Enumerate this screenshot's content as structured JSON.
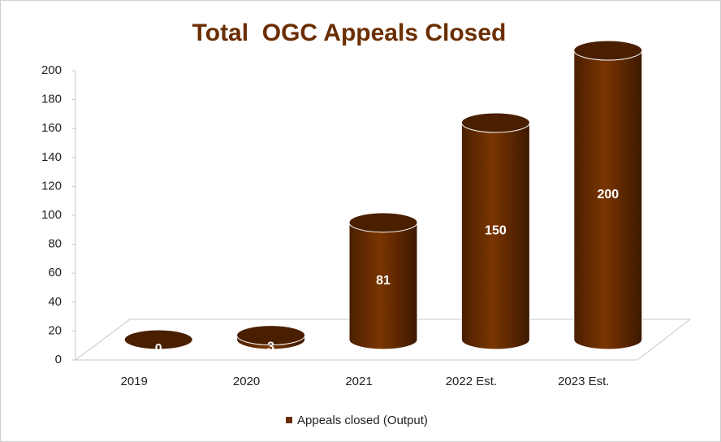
{
  "chart_data": {
    "type": "bar",
    "title": "Total  OGC Appeals Closed",
    "categories": [
      "2019",
      "2020",
      "2021",
      "2022 Est.",
      "2023 Est."
    ],
    "series": [
      {
        "name": "Appeals closed (Output)",
        "color": "#6b2e00",
        "values": [
          0,
          3,
          81,
          150,
          200
        ]
      }
    ],
    "ylim": [
      0,
      200
    ],
    "yticks": [
      0,
      20,
      40,
      60,
      80,
      100,
      120,
      140,
      160,
      180,
      200
    ],
    "legend": "bottom"
  }
}
